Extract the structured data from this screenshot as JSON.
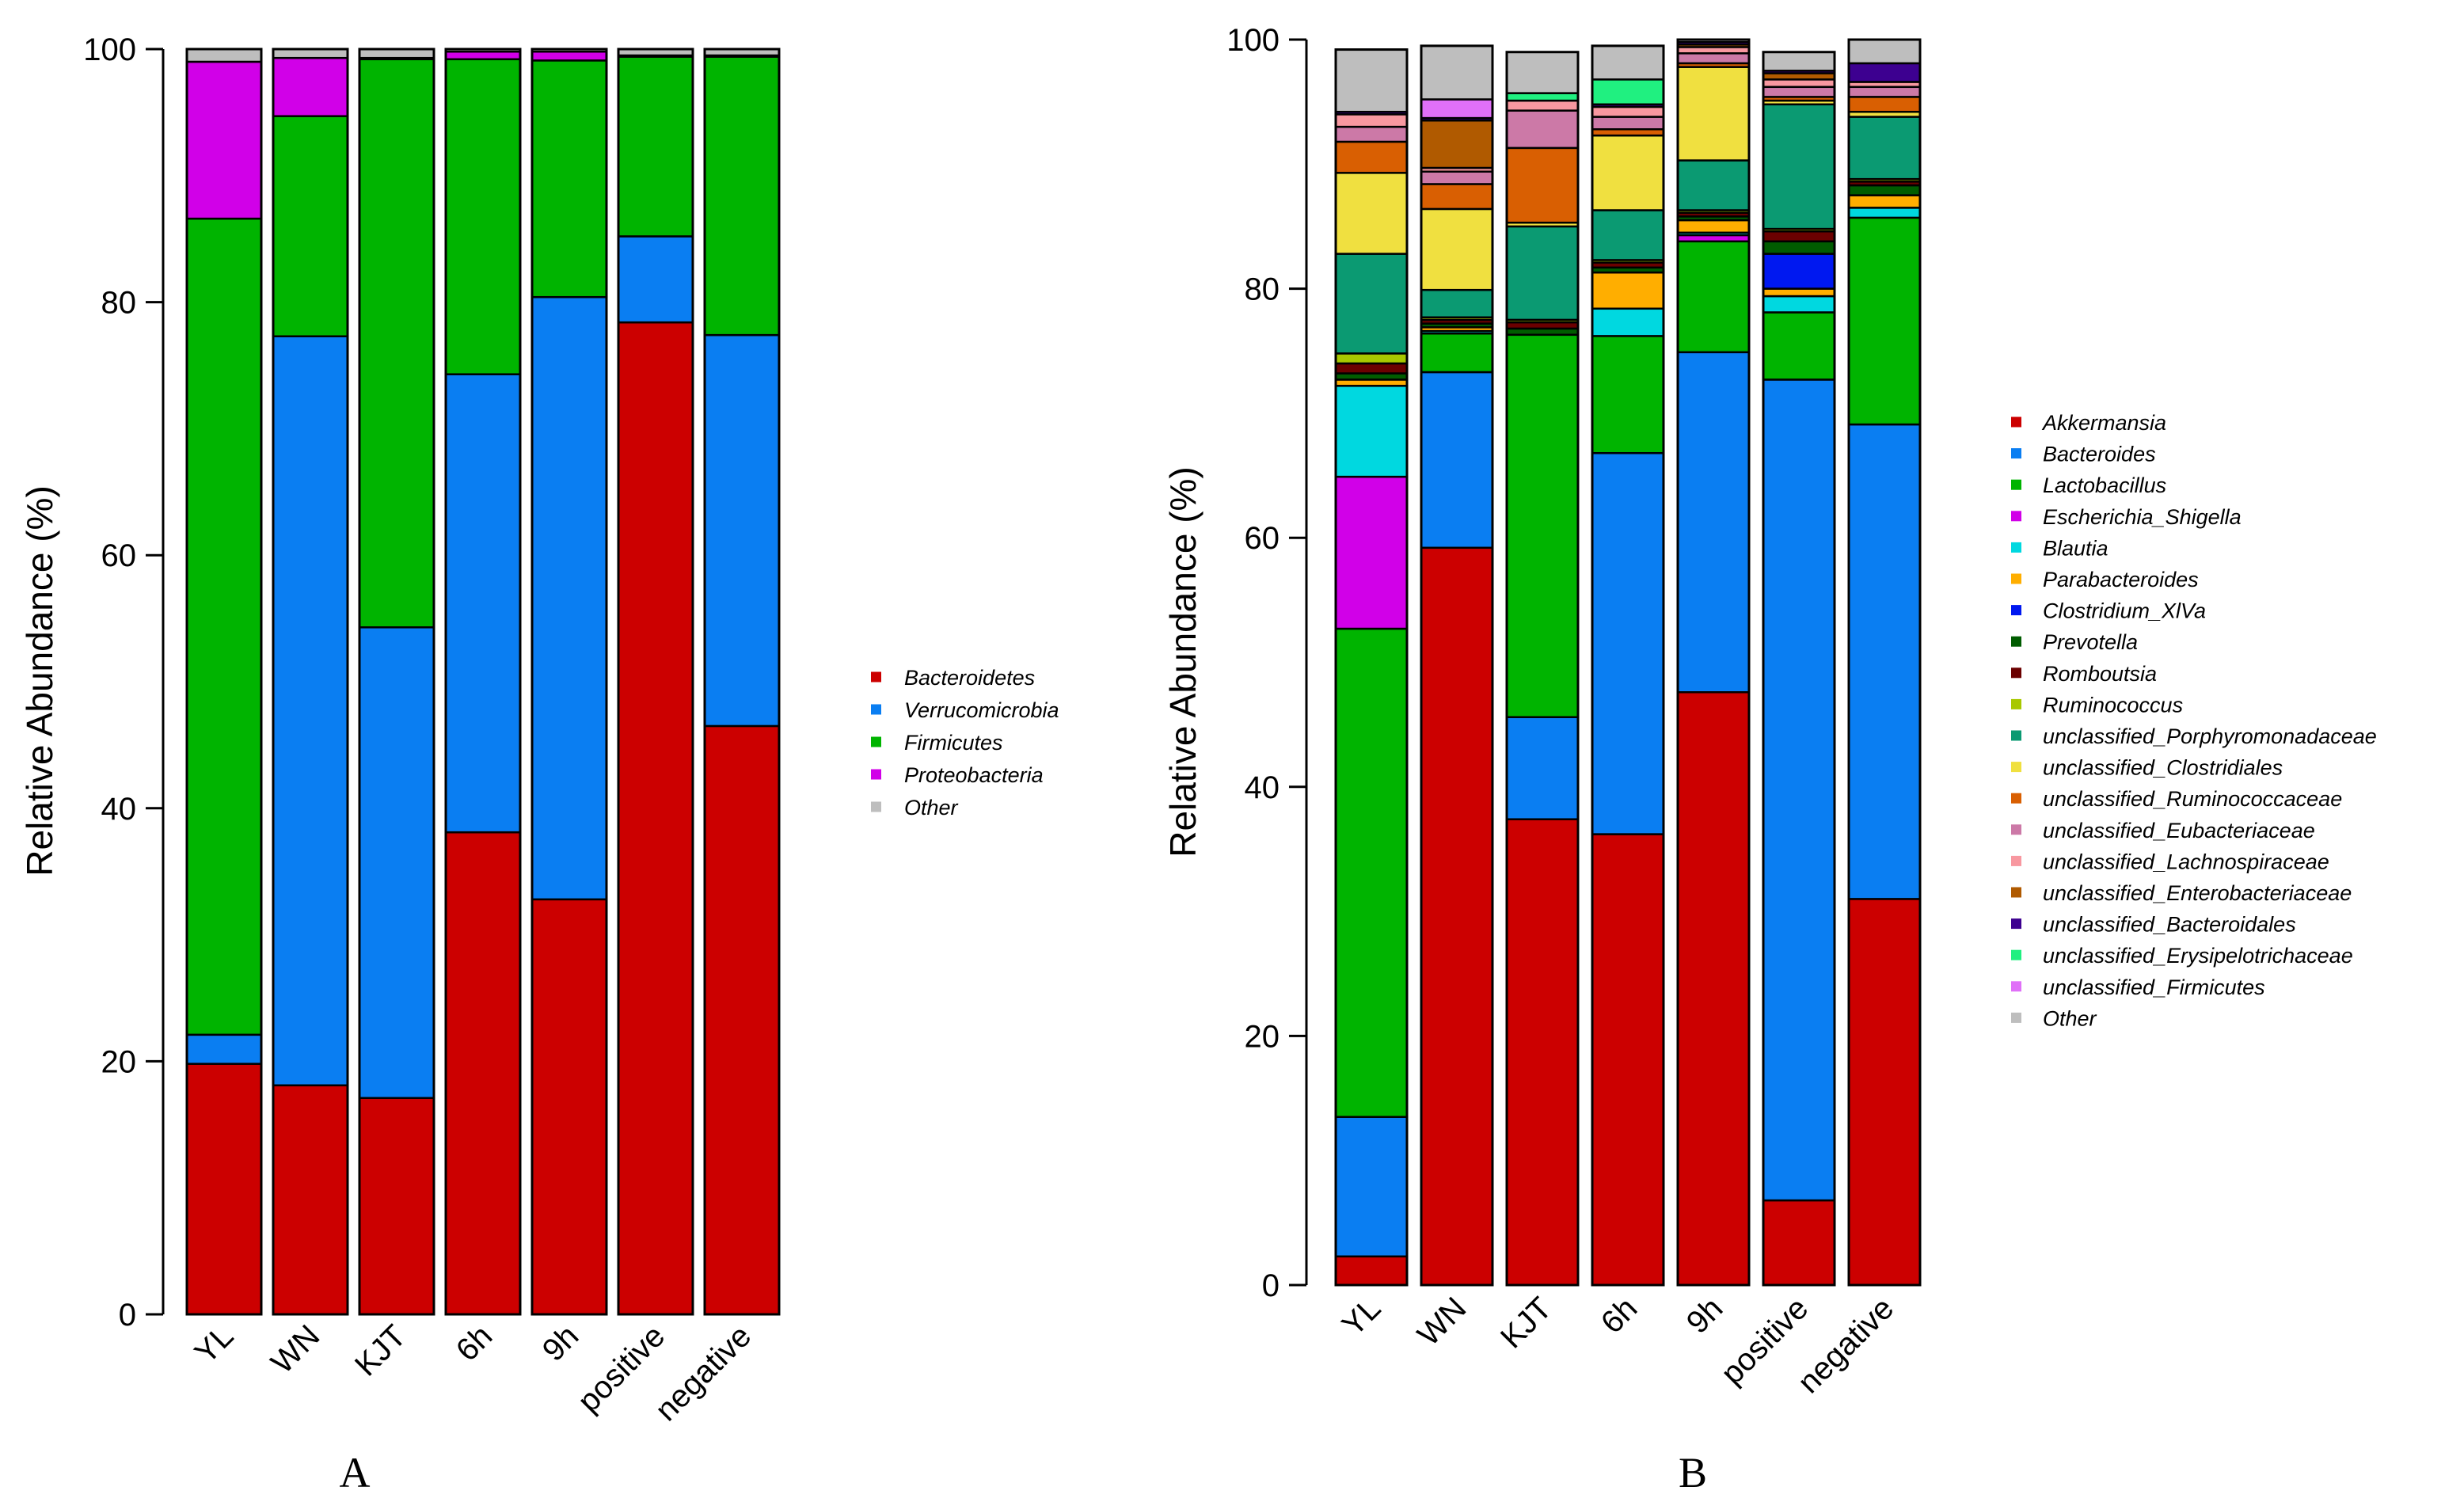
{
  "chart_data": [
    {
      "type": "bar",
      "stacked": true,
      "panel_label": "A",
      "ylabel": "Relative Abundance (%)",
      "xlabel": "",
      "ylim": [
        0,
        100
      ],
      "yticks": [
        "0",
        "20",
        "40",
        "60",
        "80",
        "100"
      ],
      "categories": [
        "YL",
        "WN",
        "KJT",
        "6h",
        "9h",
        "positive",
        "negative"
      ],
      "legend_position": "right",
      "series": [
        {
          "name": "Bacteroidetes",
          "color": "#CC0000",
          "values": [
            19.8,
            18.1,
            17.1,
            38.1,
            32.8,
            78.4,
            46.5
          ]
        },
        {
          "name": "Verrucomicrobia",
          "color": "#0A7EF2",
          "values": [
            2.3,
            59.2,
            37.2,
            36.2,
            47.6,
            6.8,
            30.9
          ]
        },
        {
          "name": "Firmicutes",
          "color": "#00B400",
          "values": [
            64.5,
            17.4,
            44.9,
            24.9,
            18.7,
            14.2,
            22.0
          ]
        },
        {
          "name": "Proteobacteria",
          "color": "#D100E8",
          "values": [
            12.4,
            4.6,
            0.1,
            0.6,
            0.7,
            0.1,
            0.1
          ]
        },
        {
          "name": "Other",
          "color": "#BEBEBE",
          "values": [
            1.0,
            0.7,
            0.7,
            0.2,
            0.2,
            0.5,
            0.5
          ]
        }
      ]
    },
    {
      "type": "bar",
      "stacked": true,
      "panel_label": "B",
      "ylabel": "Relative Abundance (%)",
      "xlabel": "",
      "ylim": [
        0,
        100
      ],
      "yticks": [
        "0",
        "20",
        "40",
        "60",
        "80",
        "100"
      ],
      "categories": [
        "YL",
        "WN",
        "KJT",
        "6h",
        "9h",
        "positive",
        "negative"
      ],
      "legend_position": "right",
      "series": [
        {
          "name": "Akkermansia",
          "color": "#CC0000",
          "values": [
            2.3,
            59.2,
            37.4,
            36.2,
            47.6,
            6.8,
            31.0
          ]
        },
        {
          "name": "Bacteroides",
          "color": "#0A7EF2",
          "values": [
            11.2,
            14.1,
            8.2,
            30.6,
            27.3,
            65.9,
            38.1
          ]
        },
        {
          "name": "Lactobacillus",
          "color": "#00B400",
          "values": [
            39.2,
            3.1,
            30.7,
            9.4,
            8.9,
            5.4,
            16.6
          ]
        },
        {
          "name": "Escherichia_Shigella",
          "color": "#D100E8",
          "values": [
            12.2,
            0.0,
            0.0,
            0.0,
            0.5,
            0.0,
            0.0
          ]
        },
        {
          "name": "Blautia",
          "color": "#00D8E0",
          "values": [
            7.3,
            0.2,
            0.0,
            2.2,
            0.2,
            1.3,
            0.8
          ]
        },
        {
          "name": "Parabacteroides",
          "color": "#FFAE00",
          "values": [
            0.5,
            0.3,
            0.0,
            2.9,
            1.0,
            0.6,
            1.0
          ]
        },
        {
          "name": "Clostridium_XlVa",
          "color": "#0018F0",
          "values": [
            0.0,
            0.0,
            0.0,
            0.0,
            0.0,
            2.8,
            0.0
          ]
        },
        {
          "name": "Prevotella",
          "color": "#005C00",
          "values": [
            0.5,
            0.3,
            0.5,
            0.4,
            0.3,
            1.0,
            0.8
          ]
        },
        {
          "name": "Romboutsia",
          "color": "#6B0000",
          "values": [
            0.8,
            0.3,
            0.5,
            0.4,
            0.3,
            0.8,
            0.3
          ]
        },
        {
          "name": "Ruminococcus",
          "color": "#A8C800",
          "values": [
            0.8,
            0.2,
            0.2,
            0.2,
            0.2,
            0.2,
            0.2
          ]
        },
        {
          "name": "unclassified_Porphyromonadaceae",
          "color": "#0B9A72",
          "values": [
            8.0,
            2.2,
            7.5,
            4.0,
            4.0,
            10.0,
            5.0
          ]
        },
        {
          "name": "unclassified_Clostridiales",
          "color": "#F0E040",
          "values": [
            6.5,
            6.5,
            0.3,
            6.0,
            7.5,
            0.3,
            0.4
          ]
        },
        {
          "name": "unclassified_Ruminococcaceae",
          "color": "#D95F02",
          "values": [
            2.5,
            2.0,
            6.0,
            0.5,
            0.3,
            0.3,
            1.2
          ]
        },
        {
          "name": "unclassified_Eubacteriaceae",
          "color": "#CC79A7",
          "values": [
            1.2,
            1.0,
            3.0,
            1.0,
            0.8,
            0.8,
            0.8
          ]
        },
        {
          "name": "unclassified_Lachnospiraceae",
          "color": "#F898A0",
          "values": [
            1.0,
            0.3,
            0.8,
            0.8,
            0.5,
            0.6,
            0.4
          ]
        },
        {
          "name": "unclassified_Enterobacteriaceae",
          "color": "#B05A00",
          "values": [
            0.0,
            3.8,
            0.0,
            0.0,
            0.2,
            0.5,
            0.0
          ]
        },
        {
          "name": "unclassified_Bacteroidales",
          "color": "#3D0090",
          "values": [
            0.2,
            0.2,
            0.0,
            0.2,
            0.2,
            0.2,
            1.5
          ]
        },
        {
          "name": "unclassified_Erysipelotrichaceae",
          "color": "#20F080",
          "values": [
            0.0,
            0.0,
            0.6,
            2.0,
            0.0,
            0.0,
            0.0
          ]
        },
        {
          "name": "unclassified_Firmicutes",
          "color": "#E070F8",
          "values": [
            0.0,
            1.5,
            0.0,
            0.0,
            0.0,
            0.0,
            0.0
          ]
        },
        {
          "name": "Other",
          "color": "#BEBEBE",
          "values": [
            5.0,
            4.3,
            3.3,
            2.7,
            0.8,
            1.5,
            2.1
          ]
        }
      ]
    }
  ]
}
